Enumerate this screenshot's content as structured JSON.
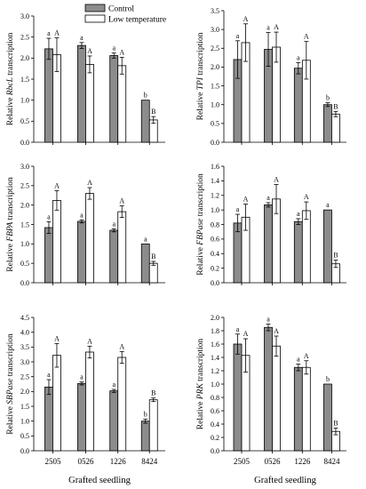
{
  "legend": {
    "entries": [
      {
        "label": "Control",
        "color": "#8c8c8c"
      },
      {
        "label": "Low temperature",
        "color": "#ffffff"
      }
    ]
  },
  "colors": {
    "control": "#8c8c8c",
    "low_temperature": "#ffffff",
    "stroke": "#000000"
  },
  "chart_data": [
    {
      "type": "bar",
      "id": "rbcl",
      "ylabel_pre": "Relative ",
      "ylabel_gene": "RbcL",
      "ylabel_post": " transcription",
      "categories": [
        "2505",
        "0526",
        "1226",
        "8424"
      ],
      "ylim": [
        0,
        3.0
      ],
      "yticks": [
        0.0,
        0.5,
        1.0,
        1.5,
        2.0,
        2.5,
        3.0
      ],
      "show_xticklabels": false,
      "xlabel": "",
      "series": [
        {
          "name": "Control",
          "values": [
            2.22,
            2.3,
            2.06,
            1.0
          ],
          "errors": [
            0.25,
            0.07,
            0.06,
            0.0
          ],
          "letters": [
            "a",
            "a",
            "a",
            "b"
          ]
        },
        {
          "name": "Low temperature",
          "values": [
            2.08,
            1.85,
            1.82,
            0.53
          ],
          "errors": [
            0.4,
            0.2,
            0.2,
            0.08
          ],
          "letters": [
            "A",
            "A",
            "A",
            "B"
          ]
        }
      ]
    },
    {
      "type": "bar",
      "id": "tpi",
      "ylabel_pre": "Relative ",
      "ylabel_gene": "TPI",
      "ylabel_post": " transcription",
      "categories": [
        "2505",
        "0526",
        "1226",
        "8424"
      ],
      "ylim": [
        0,
        3.5
      ],
      "yticks": [
        0.0,
        0.5,
        1.0,
        1.5,
        2.0,
        2.5,
        3.0,
        3.5
      ],
      "show_xticklabels": false,
      "xlabel": "",
      "series": [
        {
          "name": "Control",
          "values": [
            2.2,
            2.47,
            1.97,
            1.0
          ],
          "errors": [
            0.5,
            0.45,
            0.15,
            0.05
          ],
          "letters": [
            "a",
            "a",
            "a",
            "b"
          ]
        },
        {
          "name": "Low temperature",
          "values": [
            2.65,
            2.53,
            2.18,
            0.75
          ],
          "errors": [
            0.5,
            0.4,
            0.5,
            0.07
          ],
          "letters": [
            "A",
            "A",
            "A",
            "B"
          ]
        }
      ]
    },
    {
      "type": "bar",
      "id": "fbpa",
      "ylabel_pre": "Relative ",
      "ylabel_gene": "FBPA",
      "ylabel_post": " transcription",
      "categories": [
        "2505",
        "0526",
        "1226",
        "8424"
      ],
      "ylim": [
        0,
        3.0
      ],
      "yticks": [
        0.0,
        0.5,
        1.0,
        1.5,
        2.0,
        2.5,
        3.0
      ],
      "show_xticklabels": false,
      "xlabel": "",
      "series": [
        {
          "name": "Control",
          "values": [
            1.42,
            1.58,
            1.35,
            1.0
          ],
          "errors": [
            0.15,
            0.04,
            0.04,
            0.0
          ],
          "letters": [
            "a",
            "a",
            "a",
            "a"
          ]
        },
        {
          "name": "Low temperature",
          "values": [
            2.12,
            2.3,
            1.83,
            0.5
          ],
          "errors": [
            0.25,
            0.15,
            0.15,
            0.05
          ],
          "letters": [
            "A",
            "A",
            "A",
            "B"
          ]
        }
      ]
    },
    {
      "type": "bar",
      "id": "fbpase",
      "ylabel_pre": "Relative ",
      "ylabel_gene": "FBPase",
      "ylabel_post": " transcription",
      "categories": [
        "2505",
        "0526",
        "1226",
        "8424"
      ],
      "ylim": [
        0,
        1.6
      ],
      "yticks": [
        0.0,
        0.2,
        0.4,
        0.6,
        0.8,
        1.0,
        1.2,
        1.4,
        1.6
      ],
      "show_xticklabels": false,
      "xlabel": "",
      "series": [
        {
          "name": "Control",
          "values": [
            0.82,
            1.07,
            0.84,
            1.0
          ],
          "errors": [
            0.12,
            0.03,
            0.04,
            0.0
          ],
          "letters": [
            "a",
            "a",
            "a",
            "a"
          ]
        },
        {
          "name": "Low temperature",
          "values": [
            0.9,
            1.15,
            0.99,
            0.26
          ],
          "errors": [
            0.18,
            0.2,
            0.12,
            0.05
          ],
          "letters": [
            "A",
            "A",
            "A",
            "B"
          ]
        }
      ]
    },
    {
      "type": "bar",
      "id": "sbpase",
      "ylabel_pre": "Relative ",
      "ylabel_gene": "SBPase",
      "ylabel_post": " transcription",
      "categories": [
        "2505",
        "0526",
        "1226",
        "8424"
      ],
      "ylim": [
        0,
        4.5
      ],
      "yticks": [
        0.0,
        0.5,
        1.0,
        1.5,
        2.0,
        2.5,
        3.0,
        3.5,
        4.0,
        4.5
      ],
      "show_xticklabels": true,
      "xlabel": "Grafted seedling",
      "series": [
        {
          "name": "Control",
          "values": [
            2.15,
            2.27,
            2.02,
            1.0
          ],
          "errors": [
            0.25,
            0.05,
            0.05,
            0.07
          ],
          "letters": [
            "a",
            "a",
            "a",
            "b"
          ]
        },
        {
          "name": "Low temperature",
          "values": [
            3.22,
            3.33,
            3.15,
            1.72
          ],
          "errors": [
            0.4,
            0.2,
            0.2,
            0.06
          ],
          "letters": [
            "A",
            "A",
            "A",
            "B"
          ]
        }
      ]
    },
    {
      "type": "bar",
      "id": "prk",
      "ylabel_pre": "Relative ",
      "ylabel_gene": "PRK",
      "ylabel_post": " transcription",
      "categories": [
        "2505",
        "0526",
        "1226",
        "8424"
      ],
      "ylim": [
        0,
        2.0
      ],
      "yticks": [
        0.0,
        0.2,
        0.4,
        0.6,
        0.8,
        1.0,
        1.2,
        1.4,
        1.6,
        1.8,
        2.0
      ],
      "show_xticklabels": true,
      "xlabel": "Grafted seedling",
      "series": [
        {
          "name": "Control",
          "values": [
            1.6,
            1.85,
            1.25,
            1.0
          ],
          "errors": [
            0.15,
            0.05,
            0.05,
            0.0
          ],
          "letters": [
            "a",
            "a",
            "a",
            "b"
          ]
        },
        {
          "name": "Low temperature",
          "values": [
            1.43,
            1.57,
            1.25,
            0.29
          ],
          "errors": [
            0.25,
            0.15,
            0.1,
            0.05
          ],
          "letters": [
            "A",
            "A",
            "A",
            "B"
          ]
        }
      ]
    }
  ]
}
